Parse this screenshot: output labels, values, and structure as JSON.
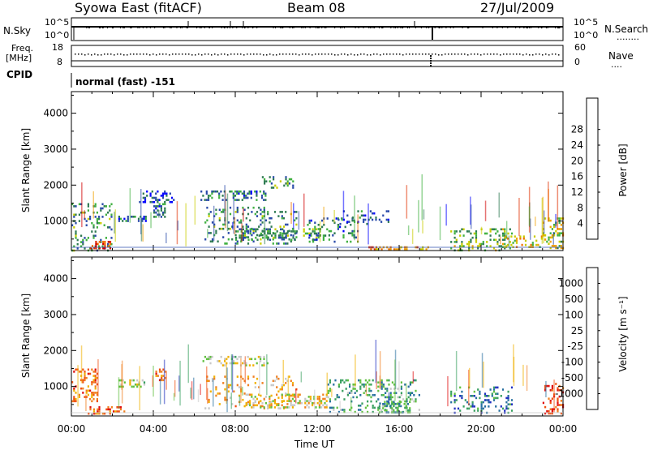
{
  "header": {
    "station": "Syowa East (fitACF)",
    "beam": "Beam 08",
    "date": "27/Jul/2009"
  },
  "status_panels": {
    "nsky_label": "N.Sky",
    "nsky_ticks": [
      "10^0",
      "10^5"
    ],
    "nsearch_label": "N.Search",
    "nsearch_ticks": [
      "10^0",
      "10^5"
    ],
    "nsearch_legend": "........",
    "freq_label": "Freq.",
    "freq_unit": "[MHz]",
    "freq_ticks": [
      "8",
      "18"
    ],
    "nave_label": "Nave",
    "nave_ticks": [
      "0",
      "60"
    ],
    "nave_legend": "....",
    "cpid_label": "CPID",
    "cpid_text": "normal (fast) -151"
  },
  "chart_data": [
    {
      "type": "heatmap",
      "name": "power",
      "xlabel": "",
      "ylabel": "Slant Range [km]",
      "xlim": [
        0,
        24
      ],
      "ylim": [
        180,
        4600
      ],
      "x_tick_labels": [
        "00:00",
        "04:00",
        "08:00",
        "12:00",
        "16:00",
        "20:00",
        "00:00"
      ],
      "y_ticks": [
        1000,
        2000,
        3000,
        4000
      ],
      "colorbar": {
        "label": "Power [dB]",
        "ticks": [
          "4",
          "8",
          "12",
          "16",
          "20",
          "24",
          "28"
        ],
        "colors": [
          "#0000ff",
          "#2849a8",
          "#2e7a52",
          "#3fb040",
          "#c8cc00",
          "#f0a000",
          "#f07000",
          "#e03000",
          "#d00000"
        ]
      },
      "echo_regions": [
        {
          "t0": 0.0,
          "t1": 2.0,
          "r0": 180,
          "r1": 1500,
          "value": 0.3,
          "density": 0.35
        },
        {
          "t0": 0.9,
          "t1": 1.9,
          "r0": 230,
          "r1": 450,
          "value": 0.85,
          "density": 0.9
        },
        {
          "t0": 2.2,
          "t1": 3.6,
          "r0": 1000,
          "r1": 1150,
          "value": 0.25,
          "density": 0.5
        },
        {
          "t0": 3.3,
          "t1": 5.0,
          "r0": 1550,
          "r1": 1850,
          "value": 0.15,
          "density": 0.55
        },
        {
          "t0": 4.0,
          "t1": 4.6,
          "r0": 1100,
          "r1": 1500,
          "value": 0.2,
          "density": 0.6
        },
        {
          "t0": 6.3,
          "t1": 9.5,
          "r0": 1600,
          "r1": 1850,
          "value": 0.25,
          "density": 0.7
        },
        {
          "t0": 6.5,
          "t1": 11.0,
          "r0": 400,
          "r1": 1400,
          "value": 0.3,
          "density": 0.3
        },
        {
          "t0": 8.0,
          "t1": 12.5,
          "r0": 500,
          "r1": 800,
          "value": 0.3,
          "density": 0.75
        },
        {
          "t0": 9.3,
          "t1": 10.8,
          "r0": 1900,
          "r1": 2250,
          "value": 0.3,
          "density": 0.45
        },
        {
          "t0": 11.5,
          "t1": 14.0,
          "r0": 400,
          "r1": 1100,
          "value": 0.25,
          "density": 0.3
        },
        {
          "t0": 13.0,
          "t1": 15.5,
          "r0": 900,
          "r1": 1300,
          "value": 0.2,
          "density": 0.35
        },
        {
          "t0": 14.5,
          "t1": 17.5,
          "r0": 200,
          "r1": 300,
          "value": 0.65,
          "density": 0.8
        },
        {
          "t0": 18.5,
          "t1": 21.5,
          "r0": 200,
          "r1": 800,
          "value": 0.4,
          "density": 0.45
        },
        {
          "t0": 21.0,
          "t1": 23.0,
          "r0": 250,
          "r1": 600,
          "value": 0.55,
          "density": 0.55
        },
        {
          "t0": 23.0,
          "t1": 24.0,
          "r0": 250,
          "r1": 1100,
          "value": 0.5,
          "density": 0.5
        }
      ]
    },
    {
      "type": "heatmap",
      "name": "velocity",
      "xlabel": "Time UT",
      "ylabel": "Slant Range [km]",
      "xlim": [
        0,
        24
      ],
      "ylim": [
        180,
        4600
      ],
      "x_tick_labels": [
        "00:00",
        "04:00",
        "08:00",
        "12:00",
        "16:00",
        "20:00",
        "00:00"
      ],
      "y_ticks": [
        1000,
        2000,
        3000,
        4000
      ],
      "colorbar": {
        "label": "Velocity [m s⁻¹]",
        "ticks": [
          "1000",
          "500",
          "100",
          "25",
          "-25",
          "-100",
          "-500",
          "-1000"
        ],
        "colors": [
          "#2030c0",
          "#2870a0",
          "#3aa060",
          "#60c040",
          "#c8c8c8",
          "#f0b000",
          "#f08020",
          "#f05010",
          "#e01010"
        ]
      },
      "echo_regions": [
        {
          "t0": 0.0,
          "t1": 1.3,
          "r0": 600,
          "r1": 1500,
          "value": 0.75,
          "density": 0.5
        },
        {
          "t0": 0.8,
          "t1": 2.6,
          "r0": 250,
          "r1": 450,
          "value": 0.8,
          "density": 0.85
        },
        {
          "t0": 2.3,
          "t1": 3.6,
          "r0": 1000,
          "r1": 1200,
          "value": 0.5,
          "density": 0.55
        },
        {
          "t0": 4.1,
          "t1": 4.6,
          "r0": 1200,
          "r1": 1500,
          "value": 0.8,
          "density": 0.75
        },
        {
          "t0": 6.4,
          "t1": 9.6,
          "r0": 1600,
          "r1": 1850,
          "value": 0.5,
          "density": 0.55
        },
        {
          "t0": 6.5,
          "t1": 11.0,
          "r0": 400,
          "r1": 1300,
          "value": 0.62,
          "density": 0.3
        },
        {
          "t0": 8.5,
          "t1": 12.5,
          "r0": 400,
          "r1": 800,
          "value": 0.55,
          "density": 0.6
        },
        {
          "t0": 12.5,
          "t1": 17.0,
          "r0": 300,
          "r1": 1200,
          "value": 0.3,
          "density": 0.4
        },
        {
          "t0": 15.0,
          "t1": 16.5,
          "r0": 300,
          "r1": 600,
          "value": 0.3,
          "density": 0.75
        },
        {
          "t0": 18.5,
          "t1": 21.5,
          "r0": 250,
          "r1": 1000,
          "value": 0.2,
          "density": 0.4
        },
        {
          "t0": 23.0,
          "t1": 24.0,
          "r0": 250,
          "r1": 1100,
          "value": 0.85,
          "density": 0.55
        }
      ]
    }
  ]
}
